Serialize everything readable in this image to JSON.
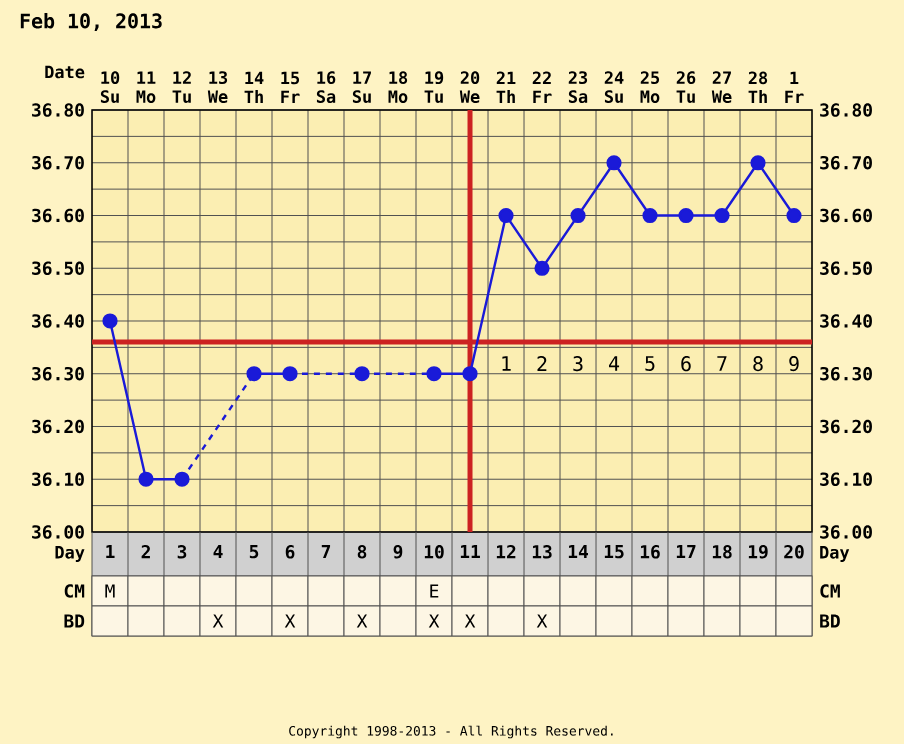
{
  "chart_data": [
    {
      "type": "line",
      "title": "Feb 10, 2013",
      "xlabel": "Day",
      "x2label": "Date",
      "x": [
        1,
        2,
        3,
        4,
        5,
        6,
        7,
        8,
        9,
        10,
        11,
        12,
        13,
        14,
        15,
        16,
        17,
        18,
        19,
        20
      ],
      "series": [
        {
          "color": "#1a1ad8",
          "values": [
            36.4,
            36.1,
            36.1,
            null,
            36.3,
            36.3,
            null,
            36.3,
            null,
            36.3,
            36.3,
            36.6,
            36.5,
            36.6,
            36.7,
            36.6,
            36.6,
            36.6,
            36.7,
            36.6
          ]
        }
      ],
      "xlim": [
        0.5,
        20.5
      ],
      "xticks": [
        1,
        2,
        3,
        4,
        5,
        6,
        7,
        8,
        9,
        10,
        11,
        12,
        13,
        14,
        15,
        16,
        17,
        18,
        19,
        20
      ],
      "x2lim": [
        "2013-02-09T12:00",
        "2013-03-01T12:00"
      ],
      "x2ticks": [
        {
          "value": "2013-02-10",
          "label": "10 Su"
        },
        {
          "value": "2013-02-11",
          "label": "11 Mo"
        },
        {
          "value": "2013-02-12",
          "label": "12 Tu"
        },
        {
          "value": "2013-02-13",
          "label": "13 We"
        },
        {
          "value": "2013-02-14",
          "label": "14 Th"
        },
        {
          "value": "2013-02-15",
          "label": "15 Fr"
        },
        {
          "value": "2013-02-16",
          "label": "16 Sa"
        },
        {
          "value": "2013-02-17",
          "label": "17 Su"
        },
        {
          "value": "2013-02-18",
          "label": "18 Mo"
        },
        {
          "value": "2013-02-19",
          "label": "19 Tu"
        },
        {
          "value": "2013-02-20",
          "label": "20 We"
        },
        {
          "value": "2013-02-21",
          "label": "21 Th"
        },
        {
          "value": "2013-02-22",
          "label": "22 Fr"
        },
        {
          "value": "2013-02-23",
          "label": "23 Sa"
        },
        {
          "value": "2013-02-24",
          "label": "24 Su"
        },
        {
          "value": "2013-02-25",
          "label": "25 Mo"
        },
        {
          "value": "2013-02-26",
          "label": "26 Tu"
        },
        {
          "value": "2013-02-27",
          "label": "27 We"
        },
        {
          "value": "2013-02-28",
          "label": "28 Th"
        },
        {
          "value": "2013-03-01",
          "label": "1 Fr"
        }
      ],
      "ylim": [
        36.0,
        36.8
      ],
      "yticks": [
        {
          "value": 36.0,
          "label": "36.00"
        },
        {
          "value": 36.1,
          "label": "36.10"
        },
        {
          "value": 36.2,
          "label": "36.20"
        },
        {
          "value": 36.3,
          "label": "36.30"
        },
        {
          "value": 36.4,
          "label": "36.40"
        },
        {
          "value": 36.5,
          "label": "36.50"
        },
        {
          "value": 36.6,
          "label": "36.60"
        },
        {
          "value": 36.7,
          "label": "36.70"
        },
        {
          "value": 36.8,
          "label": "36.80"
        }
      ],
      "y2lim": [
        36.0,
        36.8
      ],
      "y2ticks": [
        {
          "value": 36.0,
          "label": "36.00"
        },
        {
          "value": 36.1,
          "label": "36.10"
        },
        {
          "value": 36.2,
          "label": "36.20"
        },
        {
          "value": 36.3,
          "label": "36.30"
        },
        {
          "value": 36.4,
          "label": "36.40"
        },
        {
          "value": 36.5,
          "label": "36.50"
        },
        {
          "value": 36.6,
          "label": "36.60"
        },
        {
          "value": 36.7,
          "label": "36.70"
        },
        {
          "value": 36.8,
          "label": "36.80"
        }
      ],
      "ref_lines": [
        {
          "axis": "y",
          "value": 36.36,
          "color": "#cc2222"
        },
        {
          "axis": "x",
          "value": 11,
          "color": "#cc2222"
        }
      ],
      "annotations": [
        "Copyright 1998-2013 - All Rights Reserved.",
        {
          "text": "1",
          "x": 12,
          "y": 36.36
        },
        {
          "text": "2",
          "x": 13,
          "y": 36.36
        },
        {
          "text": "3",
          "x": 14,
          "y": 36.36
        },
        {
          "text": "4",
          "x": 15,
          "y": 36.36
        },
        {
          "text": "5",
          "x": 16,
          "y": 36.36
        },
        {
          "text": "6",
          "x": 17,
          "y": 36.36
        },
        {
          "text": "7",
          "x": 18,
          "y": 36.36
        },
        {
          "text": "8",
          "x": 19,
          "y": 36.36
        },
        {
          "text": "9",
          "x": 20,
          "y": 36.36
        }
      ],
      "grid": true,
      "marker": "circle",
      "line_style": "solid"
    },
    {
      "type": "heatmap",
      "categories": [
        null,
        null,
        null,
        null,
        null,
        null,
        null,
        null,
        null,
        null,
        null,
        null,
        null,
        null,
        null,
        null,
        null,
        null,
        null,
        null
      ],
      "y_categories": [
        "CM",
        "BD"
      ],
      "y2_categories": [
        "CM",
        "BD"
      ],
      "cells": [
        [
          null,
          null,
          null,
          null,
          null,
          null,
          null,
          null,
          null,
          null,
          null,
          null,
          null,
          null,
          null,
          null,
          null,
          null,
          null,
          null
        ],
        [
          null,
          null,
          null,
          null,
          null,
          null,
          null,
          null,
          null,
          null,
          null,
          null,
          null,
          null,
          null,
          null,
          null,
          null,
          null,
          null
        ]
      ],
      "cell_labels": [
        [
          "M",
          null,
          null,
          null,
          null,
          null,
          null,
          null,
          null,
          "E",
          null,
          null,
          null,
          null,
          null,
          null,
          null,
          null,
          null,
          null
        ],
        [
          null,
          null,
          null,
          "X",
          null,
          "X",
          null,
          "X",
          null,
          "X",
          "X",
          null,
          "X",
          null,
          null,
          null,
          null,
          null,
          null,
          null
        ]
      ]
    }
  ]
}
